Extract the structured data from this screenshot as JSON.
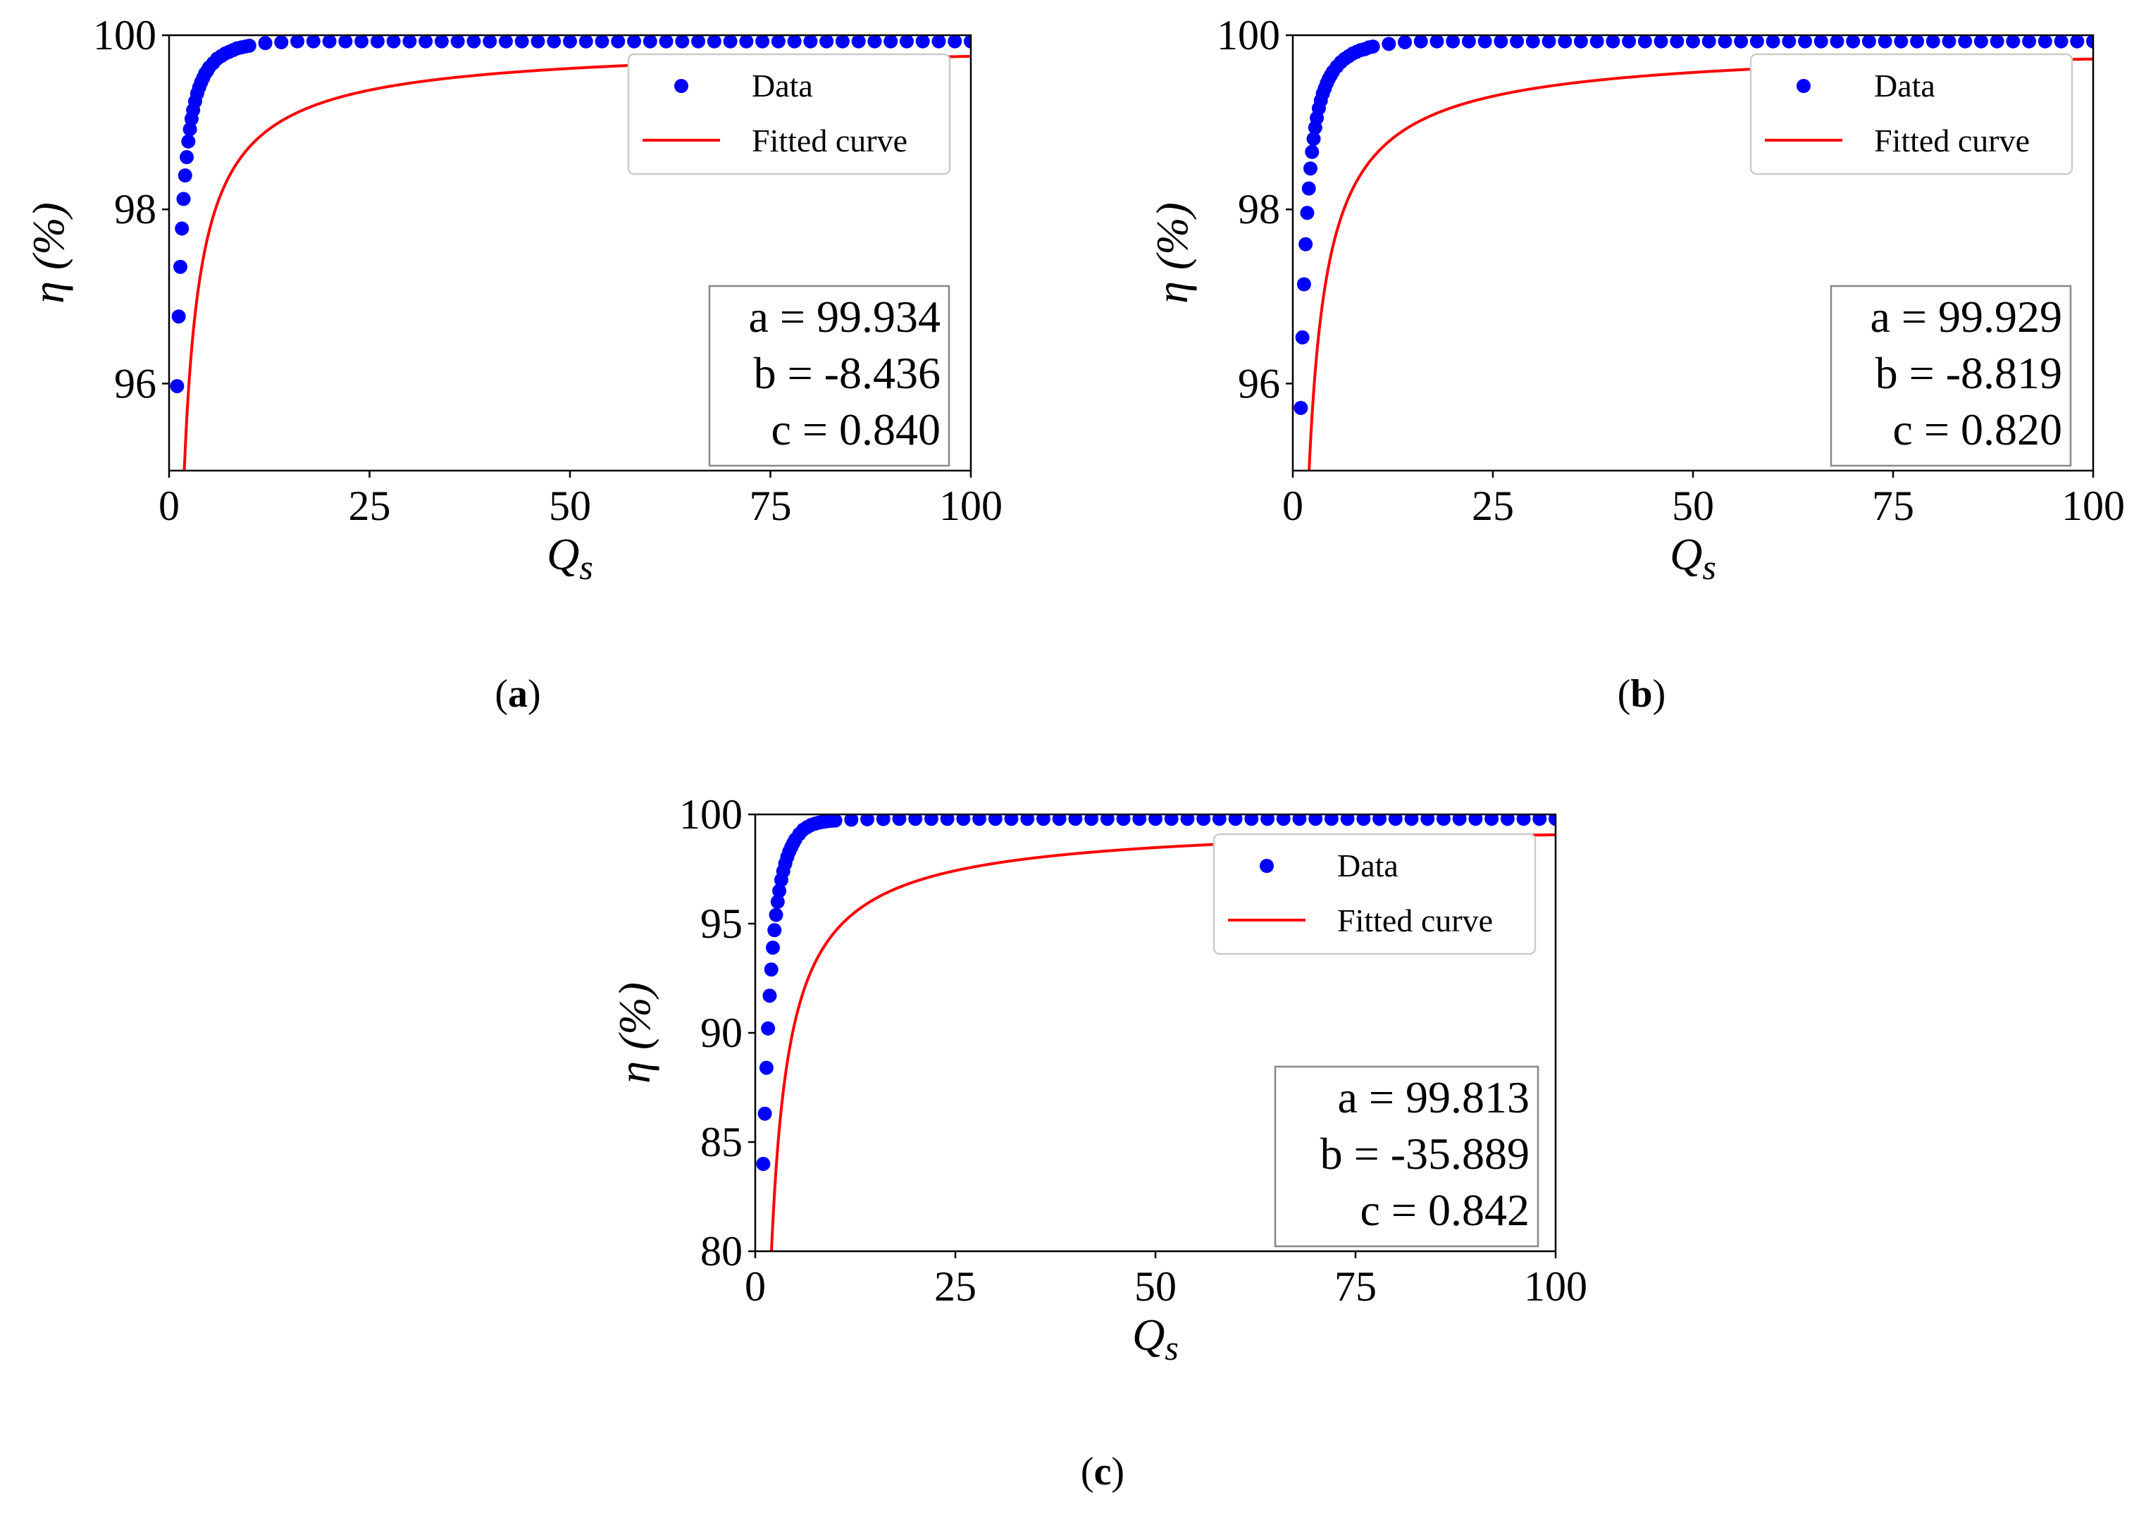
{
  "chart_data": [
    {
      "type": "scatter",
      "panel": "a",
      "caption": {
        "open": "(",
        "letter": "a",
        "close": ")"
      },
      "xlabel": "Q",
      "xlabel_sub": "s",
      "ylabel": "η (%)",
      "xlim": [
        0,
        100
      ],
      "ylim": [
        95,
        100
      ],
      "xticks": [
        0,
        25,
        50,
        75,
        100
      ],
      "yticks": [
        96,
        98,
        100
      ],
      "legend": {
        "position": "top-right",
        "entries": [
          "Data",
          "Fitted curve"
        ]
      },
      "params": {
        "a": 99.934,
        "b": -8.436,
        "c": 0.84
      },
      "param_lines": [
        "a = 99.934",
        "b = -8.436",
        "c = 0.840"
      ],
      "series": [
        {
          "name": "Data",
          "kind": "markers",
          "color": "#0000ff",
          "x": [
            1,
            1.2,
            1.4,
            1.6,
            1.8,
            2,
            2.2,
            2.4,
            2.6,
            2.8,
            3,
            3.25,
            3.5,
            3.75,
            4,
            4.25,
            4.5,
            4.75,
            5,
            5.5,
            6,
            6.5,
            7,
            7.5,
            8,
            8.5,
            9,
            9.5,
            10,
            12,
            14,
            16,
            18,
            20,
            22,
            24,
            26,
            28,
            30,
            32,
            34,
            36,
            38,
            40,
            42,
            44,
            46,
            48,
            50,
            52,
            54,
            56,
            58,
            60,
            62,
            64,
            66,
            68,
            70,
            72,
            74,
            76,
            78,
            80,
            82,
            84,
            86,
            88,
            90,
            92,
            94,
            96,
            98,
            100
          ],
          "y": [
            95.97,
            96.77,
            97.34,
            97.78,
            98.12,
            98.39,
            98.6,
            98.78,
            98.92,
            99.04,
            99.14,
            99.24,
            99.33,
            99.4,
            99.46,
            99.51,
            99.56,
            99.59,
            99.63,
            99.68,
            99.73,
            99.76,
            99.79,
            99.81,
            99.83,
            99.85,
            99.86,
            99.87,
            99.88,
            99.91,
            99.92,
            99.93,
            99.93,
            99.93,
            99.93,
            99.93,
            99.93,
            99.93,
            99.93,
            99.93,
            99.93,
            99.93,
            99.93,
            99.93,
            99.93,
            99.93,
            99.93,
            99.93,
            99.93,
            99.93,
            99.93,
            99.93,
            99.93,
            99.93,
            99.93,
            99.93,
            99.93,
            99.93,
            99.93,
            99.93,
            99.93,
            99.93,
            99.93,
            99.93,
            99.93,
            99.93,
            99.93,
            99.93,
            99.93,
            99.93,
            99.93,
            99.93,
            99.93,
            99.93
          ]
        },
        {
          "name": "Fitted curve",
          "kind": "fit",
          "color": "#ff0000",
          "x_start": 1,
          "x_end": 100
        }
      ]
    },
    {
      "type": "scatter",
      "panel": "b",
      "caption": {
        "open": "(",
        "letter": "b",
        "close": ")"
      },
      "xlabel": "Q",
      "xlabel_sub": "s",
      "ylabel": "η (%)",
      "xlim": [
        0,
        100
      ],
      "ylim": [
        95,
        100
      ],
      "xticks": [
        0,
        25,
        50,
        75,
        100
      ],
      "yticks": [
        96,
        98,
        100
      ],
      "legend": {
        "position": "top-right",
        "entries": [
          "Data",
          "Fitted curve"
        ]
      },
      "params": {
        "a": 99.929,
        "b": -8.819,
        "c": 0.82
      },
      "param_lines": [
        "a = 99.929",
        "b = -8.819",
        "c = 0.820"
      ],
      "series": [
        {
          "name": "Data",
          "kind": "markers",
          "color": "#0000ff",
          "x": [
            1,
            1.2,
            1.4,
            1.6,
            1.8,
            2,
            2.2,
            2.4,
            2.6,
            2.8,
            3,
            3.25,
            3.5,
            3.75,
            4,
            4.25,
            4.5,
            4.75,
            5,
            5.5,
            6,
            6.5,
            7,
            7.5,
            8,
            8.5,
            9,
            9.5,
            10,
            12,
            14,
            16,
            18,
            20,
            22,
            24,
            26,
            28,
            30,
            32,
            34,
            36,
            38,
            40,
            42,
            44,
            46,
            48,
            50,
            52,
            54,
            56,
            58,
            60,
            62,
            64,
            66,
            68,
            70,
            72,
            74,
            76,
            78,
            80,
            82,
            84,
            86,
            88,
            90,
            92,
            94,
            96,
            98,
            100
          ],
          "y": [
            95.72,
            96.53,
            97.14,
            97.6,
            97.96,
            98.24,
            98.47,
            98.66,
            98.81,
            98.94,
            99.05,
            99.16,
            99.25,
            99.33,
            99.39,
            99.45,
            99.5,
            99.54,
            99.58,
            99.64,
            99.69,
            99.73,
            99.76,
            99.79,
            99.81,
            99.83,
            99.84,
            99.86,
            99.87,
            99.9,
            99.92,
            99.93,
            99.93,
            99.93,
            99.93,
            99.93,
            99.93,
            99.93,
            99.93,
            99.93,
            99.93,
            99.93,
            99.93,
            99.93,
            99.93,
            99.93,
            99.93,
            99.93,
            99.93,
            99.93,
            99.93,
            99.93,
            99.93,
            99.93,
            99.93,
            99.93,
            99.93,
            99.93,
            99.93,
            99.93,
            99.93,
            99.93,
            99.93,
            99.93,
            99.93,
            99.93,
            99.93,
            99.93,
            99.93,
            99.93,
            99.93,
            99.93,
            99.93,
            99.93
          ]
        },
        {
          "name": "Fitted curve",
          "kind": "fit",
          "color": "#ff0000",
          "x_start": 1,
          "x_end": 100
        }
      ]
    },
    {
      "type": "scatter",
      "panel": "c",
      "caption": {
        "open": "(",
        "letter": "c",
        "close": ")"
      },
      "xlabel": "Q",
      "xlabel_sub": "s",
      "ylabel": "η (%)",
      "xlim": [
        0,
        100
      ],
      "ylim": [
        80,
        100
      ],
      "xticks": [
        0,
        25,
        50,
        75,
        100
      ],
      "yticks": [
        80,
        85,
        90,
        95,
        100
      ],
      "legend": {
        "position": "top-right",
        "entries": [
          "Data",
          "Fitted curve"
        ]
      },
      "params": {
        "a": 99.813,
        "b": -35.889,
        "c": 0.842
      },
      "param_lines": [
        "a = 99.813",
        "b = -35.889",
        "c = 0.842"
      ],
      "series": [
        {
          "name": "Data",
          "kind": "markers",
          "color": "#0000ff",
          "x": [
            1,
            1.2,
            1.4,
            1.6,
            1.8,
            2,
            2.2,
            2.4,
            2.6,
            2.8,
            3,
            3.25,
            3.5,
            3.75,
            4,
            4.25,
            4.5,
            4.75,
            5,
            5.5,
            6,
            6.5,
            7,
            7.5,
            8,
            8.5,
            9,
            9.5,
            10,
            12,
            14,
            16,
            18,
            20,
            22,
            24,
            26,
            28,
            30,
            32,
            34,
            36,
            38,
            40,
            42,
            44,
            46,
            48,
            50,
            52,
            54,
            56,
            58,
            60,
            62,
            64,
            66,
            68,
            70,
            72,
            74,
            76,
            78,
            80,
            82,
            84,
            86,
            88,
            90,
            92,
            94,
            96,
            98,
            100
          ],
          "y": [
            84,
            86.3,
            88.4,
            90.2,
            91.7,
            92.9,
            93.9,
            94.7,
            95.4,
            96,
            96.5,
            97,
            97.4,
            97.75,
            98.05,
            98.3,
            98.5,
            98.68,
            98.85,
            99.1,
            99.3,
            99.42,
            99.52,
            99.58,
            99.63,
            99.66,
            99.69,
            99.71,
            99.72,
            99.76,
            99.78,
            99.79,
            99.8,
            99.8,
            99.8,
            99.8,
            99.8,
            99.8,
            99.8,
            99.8,
            99.8,
            99.8,
            99.8,
            99.8,
            99.8,
            99.8,
            99.8,
            99.8,
            99.8,
            99.8,
            99.8,
            99.8,
            99.8,
            99.8,
            99.8,
            99.8,
            99.8,
            99.8,
            99.8,
            99.8,
            99.8,
            99.8,
            99.8,
            99.8,
            99.8,
            99.8,
            99.8,
            99.8,
            99.8,
            99.8,
            99.8,
            99.8,
            99.8,
            99.8
          ]
        },
        {
          "name": "Fitted curve",
          "kind": "fit",
          "color": "#ff0000",
          "x_start": 1.2,
          "x_end": 100
        }
      ]
    }
  ]
}
